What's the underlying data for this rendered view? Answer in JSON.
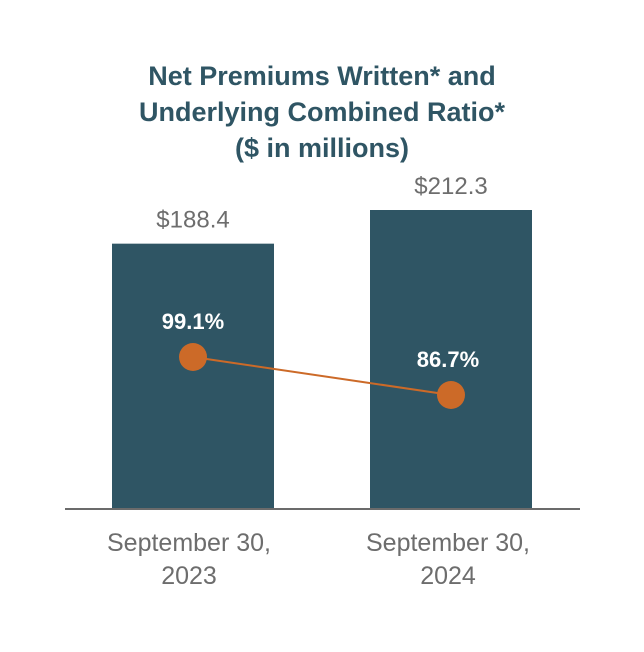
{
  "chart_data": {
    "type": "bar",
    "title_lines": [
      "Net Premiums Written* and",
      "Underlying Combined Ratio*",
      "($ in millions)"
    ],
    "categories": [
      [
        "September 30,",
        "2023"
      ],
      [
        "September 30,",
        "2024"
      ]
    ],
    "series": [
      {
        "name": "Net Premiums Written",
        "kind": "bar",
        "values": [
          188.4,
          212.3
        ],
        "labels": [
          "$188.4",
          "$212.3"
        ],
        "color": "#2f5564"
      },
      {
        "name": "Underlying Combined Ratio",
        "kind": "line",
        "values": [
          99.1,
          86.7
        ],
        "labels": [
          "99.1%",
          "86.7%"
        ],
        "color": "#cc6a28"
      }
    ],
    "bar_axis_range": [
      0,
      212.3
    ],
    "ratio_axis_range": [
      0,
      200
    ],
    "grid": false,
    "legend": "none"
  }
}
